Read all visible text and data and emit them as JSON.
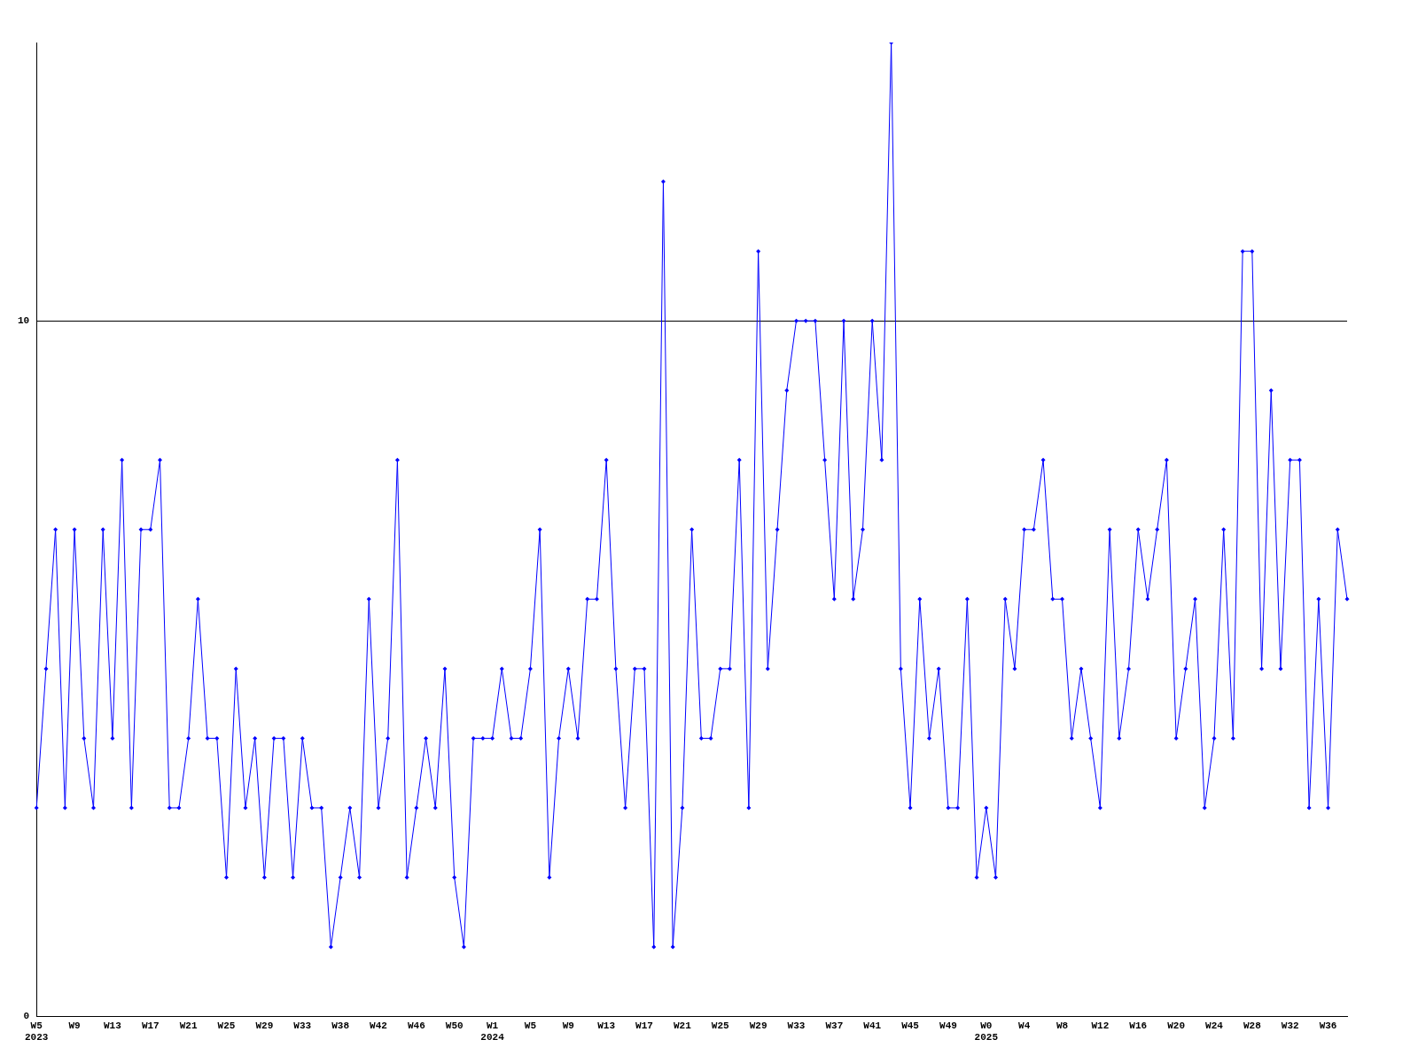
{
  "chart_data": {
    "type": "line",
    "categories": [
      "W5\n2023",
      null,
      null,
      null,
      "W9",
      null,
      null,
      null,
      "W13",
      null,
      null,
      null,
      "W17",
      null,
      null,
      null,
      "W21",
      null,
      null,
      null,
      "W25",
      null,
      null,
      null,
      "W29",
      null,
      null,
      null,
      "W33",
      null,
      null,
      null,
      "W38",
      null,
      null,
      null,
      "W42",
      null,
      null,
      null,
      "W46",
      null,
      null,
      null,
      "W50",
      null,
      null,
      null,
      "W1\n2024",
      null,
      null,
      null,
      "W5",
      null,
      null,
      null,
      "W9",
      null,
      null,
      null,
      "W13",
      null,
      null,
      null,
      "W17",
      null,
      null,
      null,
      "W21",
      null,
      null,
      null,
      "W25",
      null,
      null,
      null,
      "W29",
      null,
      null,
      null,
      "W33",
      null,
      null,
      null,
      "W37",
      null,
      null,
      null,
      "W41",
      null,
      null,
      null,
      "W45",
      null,
      null,
      null,
      "W49",
      null,
      null,
      null,
      "W0\n2025",
      null,
      null,
      null,
      "W4",
      null,
      null,
      null,
      "W8",
      null,
      null,
      null,
      "W12",
      null,
      null,
      null,
      "W16",
      null,
      null,
      null,
      "W20",
      null,
      null,
      null,
      "W24",
      null,
      null,
      null,
      "W28",
      null,
      null,
      null,
      "W32",
      null,
      null,
      null,
      "W36",
      null,
      null
    ],
    "series": [
      {
        "color": "#0000ff",
        "values": [
          3,
          5,
          7,
          3,
          7,
          4,
          3,
          7,
          4,
          8,
          3,
          7,
          7,
          8,
          3,
          3,
          4,
          6,
          4,
          4,
          2,
          5,
          3,
          4,
          2,
          4,
          4,
          2,
          4,
          3,
          3,
          1,
          2,
          3,
          2,
          6,
          3,
          4,
          8,
          2,
          3,
          4,
          3,
          5,
          2,
          1,
          4,
          4,
          4,
          5,
          4,
          4,
          5,
          7,
          2,
          4,
          5,
          4,
          6,
          6,
          8,
          5,
          3,
          5,
          5,
          1,
          12,
          1,
          3,
          7,
          4,
          4,
          5,
          5,
          8,
          3,
          11,
          5,
          7,
          9,
          10,
          10,
          10,
          8,
          6,
          10,
          6,
          7,
          10,
          8,
          14,
          5,
          3,
          6,
          4,
          5,
          3,
          3,
          6,
          2,
          3,
          2,
          6,
          5,
          7,
          7,
          8,
          6,
          6,
          4,
          5,
          4,
          3,
          7,
          4,
          5,
          7,
          6,
          7,
          8,
          4,
          5,
          6,
          3,
          4,
          7,
          4,
          11,
          11,
          5,
          9,
          5,
          8,
          8,
          3,
          6,
          3,
          7,
          6
        ]
      }
    ],
    "ylim": [
      0,
      14
    ],
    "yticks": [
      0,
      10
    ],
    "grid": "y",
    "marker": "diamond",
    "line_style": "solid",
    "legend": false
  }
}
